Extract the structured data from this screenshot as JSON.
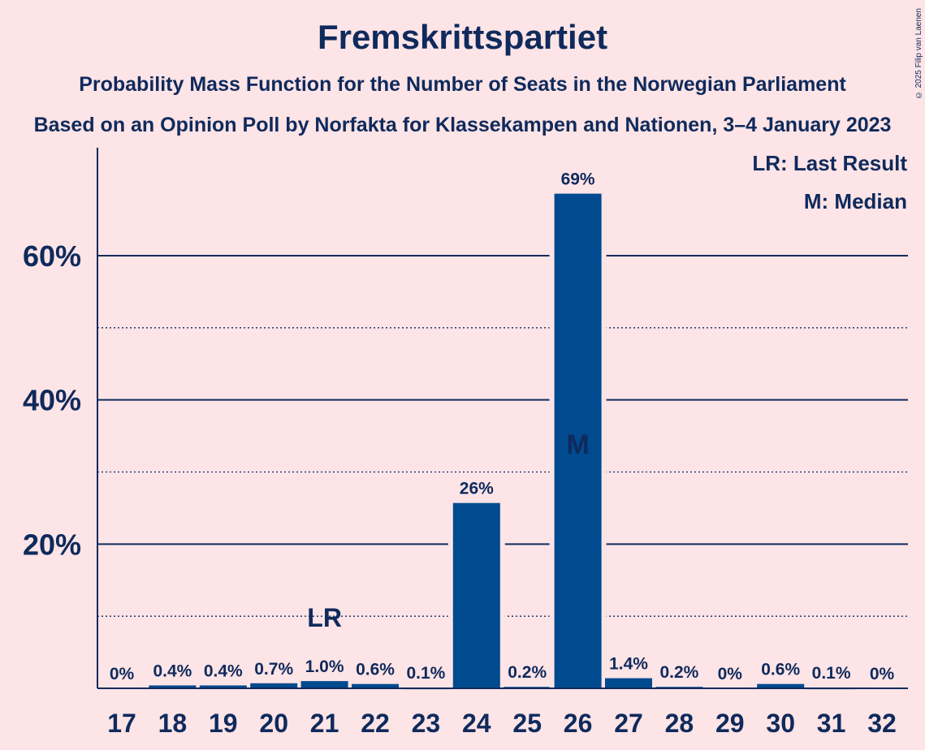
{
  "chart_data": {
    "type": "bar",
    "title": "Fremskrittspartiet",
    "subtitle": "Probability Mass Function for the Number of Seats in the Norwegian Parliament",
    "subtitle2": "Based on an Opinion Poll by Norfakta for Klassekampen and Nationen, 3–4 January 2023",
    "copyright": "© 2025 Filip van Laenen",
    "categories": [
      "17",
      "18",
      "19",
      "20",
      "21",
      "22",
      "23",
      "24",
      "25",
      "26",
      "27",
      "28",
      "29",
      "30",
      "31",
      "32"
    ],
    "values": [
      0,
      0.4,
      0.4,
      0.7,
      1.0,
      0.6,
      0.1,
      25.7,
      0.2,
      68.6,
      1.4,
      0.2,
      0,
      0.6,
      0.1,
      0
    ],
    "value_labels": [
      "0%",
      "0.4%",
      "0.4%",
      "0.7%",
      "1.0%",
      "0.6%",
      "0.1%",
      "26%",
      "0.2%",
      "69%",
      "1.4%",
      "0.2%",
      "0%",
      "0.6%",
      "0.1%",
      "0%"
    ],
    "ylim": [
      0,
      75
    ],
    "yticks": [
      20,
      40,
      60
    ],
    "ytick_labels": [
      "20%",
      "40%",
      "60%"
    ],
    "minor_gridlines": [
      10,
      30,
      50
    ],
    "last_result": {
      "category": "21",
      "label": "LR"
    },
    "median": {
      "category": "26",
      "label": "M"
    },
    "legend": {
      "position": "top-right",
      "entries": [
        "LR: Last Result",
        "M: Median"
      ]
    },
    "colors": {
      "bar": "#004a8f",
      "background": "#fde4e6",
      "text": "#0f2a5c"
    }
  }
}
